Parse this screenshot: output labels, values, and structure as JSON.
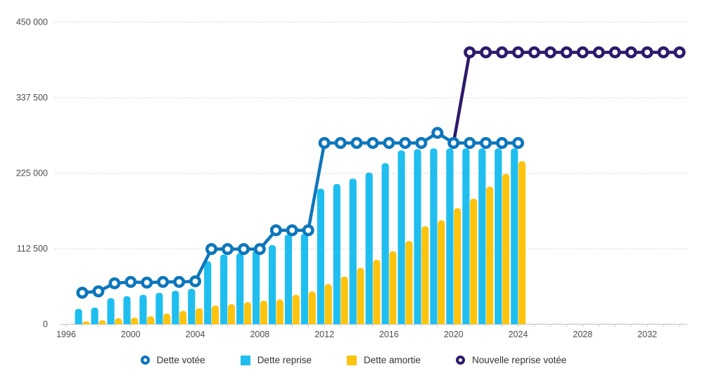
{
  "chart_data": {
    "type": "combo-bar-line",
    "title": "",
    "xlabel": "",
    "ylabel": "",
    "ylim": [
      0,
      450000
    ],
    "grid": "horizontal-dotted",
    "legend_position": "bottom-center",
    "y_axis": {
      "tick_values": [
        0,
        112500,
        225000,
        337500,
        450000
      ],
      "tick_labels": [
        "0",
        "112 500",
        "225 000",
        "337 500",
        "450 000"
      ]
    },
    "x_axis": {
      "start_year": 1996,
      "end_year": 2034,
      "tick_every_year": true,
      "labels": [
        "1996",
        "2000",
        "2004",
        "2008",
        "2012",
        "2016",
        "2020",
        "2024",
        "2028",
        "2032"
      ]
    },
    "series": [
      {
        "id": "dette_votee",
        "name": "Dette votée",
        "type": "line",
        "marker": "donut",
        "color": "#0D76BC",
        "start_year": 1997,
        "values": [
          47000,
          49000,
          61000,
          63000,
          62000,
          63000,
          63000,
          64000,
          112000,
          112000,
          112000,
          112000,
          140000,
          140000,
          140000,
          270000,
          270000,
          270000,
          270000,
          270000,
          270000,
          270000,
          285000,
          270000,
          270000,
          270000,
          270000,
          270000
        ]
      },
      {
        "id": "dette_reprise",
        "name": "Dette reprise",
        "type": "bar",
        "color": "#1FBEEF",
        "start_year": 1997,
        "values": [
          23000,
          25000,
          39000,
          42000,
          44000,
          47000,
          50000,
          53000,
          94000,
          104000,
          106000,
          110000,
          118000,
          134000,
          135000,
          202000,
          209000,
          217000,
          226000,
          240000,
          259000,
          261000,
          262000,
          262000,
          262000,
          262000,
          262000,
          262000
        ]
      },
      {
        "id": "dette_amortie",
        "name": "Dette amortie",
        "type": "bar",
        "color": "#FDC40F",
        "start_year": 1997,
        "values": [
          4000,
          6000,
          9000,
          10000,
          12000,
          16000,
          20000,
          24000,
          28000,
          30000,
          33000,
          35000,
          37000,
          44000,
          49000,
          60000,
          71000,
          84000,
          96000,
          109000,
          124000,
          146000,
          155000,
          173000,
          187000,
          205000,
          224000,
          243000
        ]
      },
      {
        "id": "nouvelle_reprise_votee",
        "name": "Nouvelle reprise votée",
        "type": "line",
        "marker": "donut",
        "color": "#2E1A6B",
        "start_year": 2020,
        "marker_from_year": 2021,
        "values": [
          270000,
          405000,
          405000,
          405000,
          405000,
          405000,
          405000,
          405000,
          405000,
          405000,
          405000,
          405000,
          405000,
          405000,
          405000
        ]
      }
    ],
    "colors": {
      "gridline": "#c9c9c9",
      "axis_line": "#c9c9c9",
      "axis_text": "#4d4d4d",
      "legend_text": "#333333",
      "background": "#ffffff"
    }
  }
}
